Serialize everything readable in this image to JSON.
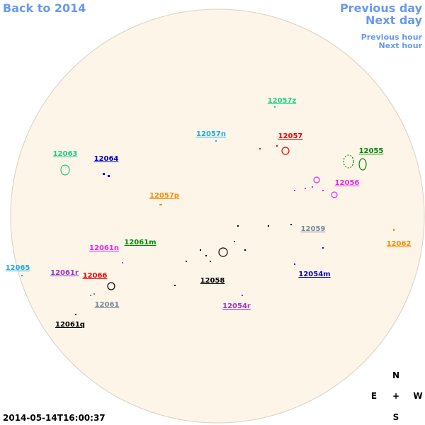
{
  "nav": {
    "back": "Back to 2014",
    "previous_day": "Previous day",
    "next_day": "Next day",
    "previous_hour": "Previous hour",
    "next_hour": "Next hour"
  },
  "regions": [
    {
      "label": "12057z",
      "color": "#22cc88"
    },
    {
      "label": "12057n",
      "color": "#22aadd"
    },
    {
      "label": "12057",
      "color": "#ee0000"
    },
    {
      "label": "12055",
      "color": "#008800"
    },
    {
      "label": "12063",
      "color": "#22cc88"
    },
    {
      "label": "12064",
      "color": "#0000cc"
    },
    {
      "label": "12056",
      "color": "#ee22ee"
    },
    {
      "label": "12057p",
      "color": "#ff8800"
    },
    {
      "label": "12059",
      "color": "#778899"
    },
    {
      "label": "12062",
      "color": "#ff8800"
    },
    {
      "label": "12061n",
      "color": "#ee22ee"
    },
    {
      "label": "12061m",
      "color": "#008800"
    },
    {
      "label": "12065",
      "color": "#22aadd"
    },
    {
      "label": "12061r",
      "color": "#9933cc"
    },
    {
      "label": "12066",
      "color": "#ee0000"
    },
    {
      "label": "12058",
      "color": "#000000"
    },
    {
      "label": "12054m",
      "color": "#0000cc"
    },
    {
      "label": "12061",
      "color": "#778899"
    },
    {
      "label": "12054r",
      "color": "#9933cc"
    },
    {
      "label": "12061q",
      "color": "#000000"
    }
  ],
  "timestamp": "2014-05-14T16:00:37",
  "compass": {
    "north": "N",
    "east": "E",
    "center": "+",
    "west": "W",
    "south": "S"
  }
}
